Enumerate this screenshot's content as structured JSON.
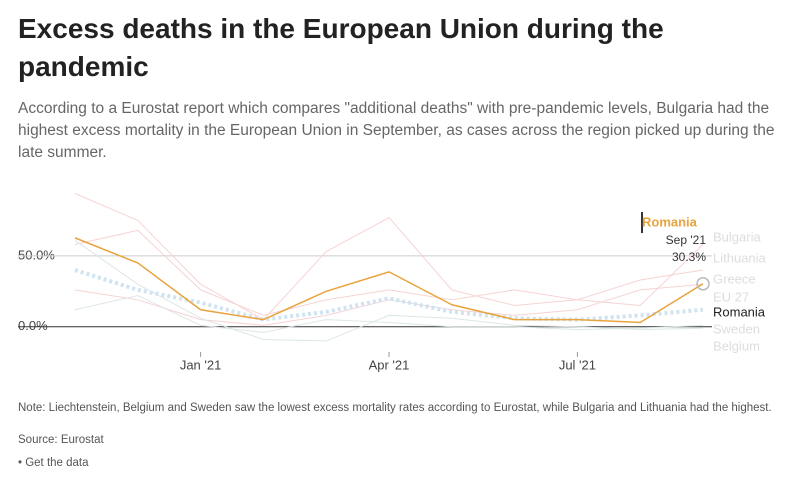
{
  "chart_data": {
    "type": "line",
    "title": "Excess deaths in the European Union during the pandemic",
    "subtitle": "According to a Eurostat report which compares \"additional deaths\" with pre-pandemic levels, Bulgaria had the highest excess mortality in the European Union in September, as cases across the region picked up during the late summer.",
    "categories": [
      null,
      null,
      "Jan '21",
      null,
      null,
      "Apr '21",
      null,
      null,
      "Jul '21",
      null,
      null
    ],
    "ylim": [
      -15,
      100
    ],
    "yticks": [
      {
        "value": 0,
        "label": "0.0%"
      },
      {
        "value": 50,
        "label": "50.0%"
      }
    ],
    "grid": true,
    "series": [
      {
        "name": "Bulgaria",
        "color": "#f6d3d3",
        "values": [
          94,
          75,
          30,
          5,
          53,
          77,
          26,
          15,
          19,
          15,
          58
        ]
      },
      {
        "name": "Lithuania",
        "color": "#f6d3d3",
        "values": [
          58,
          68,
          26,
          8,
          19,
          26,
          19,
          26,
          19,
          33,
          40
        ]
      },
      {
        "name": "Greece",
        "color": "#f6d3d3",
        "values": [
          26,
          19,
          5,
          1,
          8,
          19,
          12,
          8,
          12,
          26,
          30
        ]
      },
      {
        "name": "EU 27",
        "color": "#cfe3f0",
        "values": [
          40,
          26,
          17,
          5,
          10.5,
          20,
          10.5,
          6,
          5,
          8,
          12
        ]
      },
      {
        "name": "Romania",
        "color": "#e8a33d",
        "values": [
          62.7,
          45,
          12,
          5,
          25,
          38.7,
          15.5,
          5,
          5,
          3,
          30.3
        ]
      },
      {
        "name": "Sweden",
        "color": "#dde6e6",
        "values": [
          12,
          22,
          1,
          -4,
          5,
          3,
          0,
          0,
          -2,
          -1,
          1
        ]
      },
      {
        "name": "Belgium",
        "color": "#dde6e6",
        "values": [
          61,
          30,
          6,
          -9,
          -10,
          8,
          6,
          1,
          0,
          -2,
          -1
        ]
      }
    ],
    "annotation": {
      "series": "Romania",
      "x_label": "Sep '21",
      "label": "30.3%"
    },
    "note": "Note: Liechtenstein, Belgium and Sweden saw the lowest excess mortality rates according to Eurostat, while Bulgaria and Lithuania had the highest.",
    "source": "Source: Eurostat",
    "link": "• Get the data"
  }
}
